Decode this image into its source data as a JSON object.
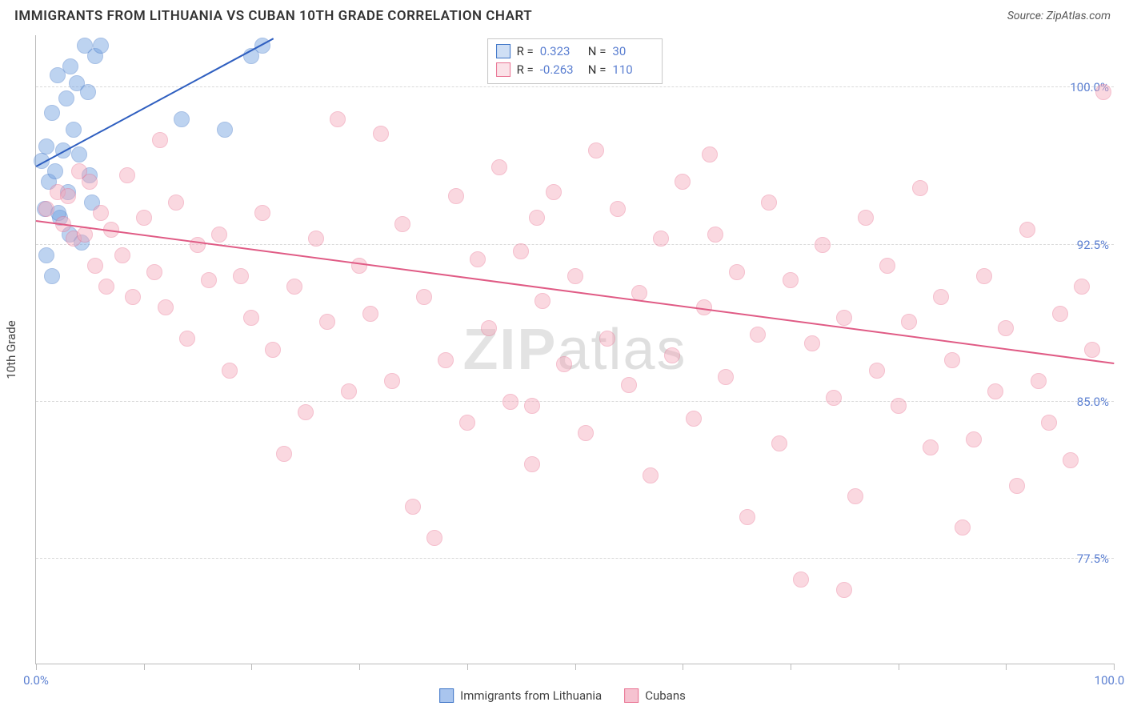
{
  "title": "IMMIGRANTS FROM LITHUANIA VS CUBAN 10TH GRADE CORRELATION CHART",
  "source": "Source: ZipAtlas.com",
  "watermark_bold": "ZIP",
  "watermark_light": "atlas",
  "ylabel": "10th Grade",
  "chart": {
    "type": "scatter",
    "background_color": "#ffffff",
    "grid_color": "#d9d9d9",
    "axis_color": "#bbbbbb",
    "tick_label_color": "#5b7fd1",
    "xlim": [
      0,
      100
    ],
    "ylim": [
      72.5,
      102.5
    ],
    "xticks": [
      0,
      10,
      20,
      30,
      40,
      50,
      60,
      70,
      80,
      90,
      100
    ],
    "xtick_labels": {
      "0": "0.0%",
      "100": "100.0%"
    },
    "yticks": [
      77.5,
      85.0,
      92.5,
      100.0
    ],
    "ytick_labels": [
      "77.5%",
      "85.0%",
      "92.5%",
      "100.0%"
    ],
    "marker_radius": 10,
    "marker_opacity": 0.45,
    "series": [
      {
        "name": "Immigrants from Lithuania",
        "short": "lithuania",
        "color": "#6f9fe0",
        "stroke": "#3d74c7",
        "r_label": "R =",
        "r_value": "0.323",
        "n_label": "N =",
        "n_value": "30",
        "trend": {
          "x1": 0,
          "y1": 96.2,
          "x2": 22,
          "y2": 102.3,
          "color": "#2f5fc0",
          "width": 2
        },
        "points": [
          [
            0.5,
            96.5
          ],
          [
            1.0,
            97.2
          ],
          [
            1.2,
            95.5
          ],
          [
            1.5,
            98.8
          ],
          [
            1.8,
            96.0
          ],
          [
            2.0,
            100.6
          ],
          [
            2.2,
            93.8
          ],
          [
            2.5,
            97.0
          ],
          [
            2.8,
            99.5
          ],
          [
            3.0,
            95.0
          ],
          [
            3.2,
            101.0
          ],
          [
            3.5,
            98.0
          ],
          [
            3.8,
            100.2
          ],
          [
            4.0,
            96.8
          ],
          [
            4.5,
            102.0
          ],
          [
            4.8,
            99.8
          ],
          [
            5.0,
            95.8
          ],
          [
            5.5,
            101.5
          ],
          [
            6.0,
            102.0
          ],
          [
            1.0,
            92.0
          ],
          [
            1.5,
            91.0
          ],
          [
            0.8,
            94.2
          ],
          [
            2.1,
            94.0
          ],
          [
            3.1,
            93.0
          ],
          [
            4.2,
            92.6
          ],
          [
            5.2,
            94.5
          ],
          [
            13.5,
            98.5
          ],
          [
            17.5,
            98.0
          ],
          [
            20.0,
            101.5
          ],
          [
            21.0,
            102.0
          ]
        ]
      },
      {
        "name": "Cubans",
        "short": "cubans",
        "color": "#f4a9bb",
        "stroke": "#e97292",
        "r_label": "R =",
        "r_value": "-0.263",
        "n_label": "N =",
        "n_value": "110",
        "trend": {
          "x1": 0,
          "y1": 93.6,
          "x2": 100,
          "y2": 86.8,
          "color": "#e05b85",
          "width": 2
        },
        "points": [
          [
            1,
            94.2
          ],
          [
            2,
            95.0
          ],
          [
            2.5,
            93.5
          ],
          [
            3,
            94.8
          ],
          [
            3.5,
            92.8
          ],
          [
            4,
            96.0
          ],
          [
            4.5,
            93.0
          ],
          [
            5,
            95.5
          ],
          [
            5.5,
            91.5
          ],
          [
            6,
            94.0
          ],
          [
            6.5,
            90.5
          ],
          [
            7,
            93.2
          ],
          [
            8,
            92.0
          ],
          [
            8.5,
            95.8
          ],
          [
            9,
            90.0
          ],
          [
            10,
            93.8
          ],
          [
            11,
            91.2
          ],
          [
            11.5,
            97.5
          ],
          [
            12,
            89.5
          ],
          [
            13,
            94.5
          ],
          [
            14,
            88.0
          ],
          [
            15,
            92.5
          ],
          [
            16,
            90.8
          ],
          [
            17,
            93.0
          ],
          [
            18,
            86.5
          ],
          [
            19,
            91.0
          ],
          [
            20,
            89.0
          ],
          [
            21,
            94.0
          ],
          [
            22,
            87.5
          ],
          [
            23,
            82.5
          ],
          [
            24,
            90.5
          ],
          [
            25,
            84.5
          ],
          [
            26,
            92.8
          ],
          [
            27,
            88.8
          ],
          [
            28,
            98.5
          ],
          [
            29,
            85.5
          ],
          [
            30,
            91.5
          ],
          [
            31,
            89.2
          ],
          [
            32,
            97.8
          ],
          [
            33,
            86.0
          ],
          [
            34,
            93.5
          ],
          [
            35,
            80.0
          ],
          [
            36,
            90.0
          ],
          [
            37,
            78.5
          ],
          [
            38,
            87.0
          ],
          [
            39,
            94.8
          ],
          [
            40,
            84.0
          ],
          [
            41,
            91.8
          ],
          [
            42,
            88.5
          ],
          [
            43,
            96.2
          ],
          [
            44,
            85.0
          ],
          [
            45,
            92.2
          ],
          [
            46,
            82.0
          ],
          [
            46.5,
            93.8
          ],
          [
            47,
            89.8
          ],
          [
            48,
            95.0
          ],
          [
            49,
            86.8
          ],
          [
            50,
            91.0
          ],
          [
            51,
            83.5
          ],
          [
            52,
            97.0
          ],
          [
            53,
            88.0
          ],
          [
            54,
            94.2
          ],
          [
            55,
            85.8
          ],
          [
            56,
            90.2
          ],
          [
            57,
            81.5
          ],
          [
            58,
            92.8
          ],
          [
            59,
            87.2
          ],
          [
            60,
            95.5
          ],
          [
            61,
            84.2
          ],
          [
            62,
            89.5
          ],
          [
            62.5,
            96.8
          ],
          [
            63,
            93.0
          ],
          [
            64,
            86.2
          ],
          [
            65,
            91.2
          ],
          [
            66,
            79.5
          ],
          [
            67,
            88.2
          ],
          [
            68,
            94.5
          ],
          [
            69,
            83.0
          ],
          [
            70,
            90.8
          ],
          [
            71,
            76.5
          ],
          [
            72,
            87.8
          ],
          [
            73,
            92.5
          ],
          [
            74,
            85.2
          ],
          [
            75,
            89.0
          ],
          [
            76,
            80.5
          ],
          [
            77,
            93.8
          ],
          [
            78,
            86.5
          ],
          [
            79,
            91.5
          ],
          [
            80,
            84.8
          ],
          [
            81,
            88.8
          ],
          [
            82,
            95.2
          ],
          [
            83,
            82.8
          ],
          [
            84,
            90.0
          ],
          [
            85,
            87.0
          ],
          [
            86,
            79.0
          ],
          [
            87,
            83.2
          ],
          [
            88,
            91.0
          ],
          [
            89,
            85.5
          ],
          [
            90,
            88.5
          ],
          [
            91,
            81.0
          ],
          [
            92,
            93.2
          ],
          [
            93,
            86.0
          ],
          [
            94,
            84.0
          ],
          [
            95,
            89.2
          ],
          [
            96,
            82.2
          ],
          [
            97,
            90.5
          ],
          [
            98,
            87.5
          ],
          [
            99,
            99.8
          ],
          [
            75,
            76.0
          ],
          [
            46,
            84.8
          ]
        ]
      }
    ]
  },
  "legend": {
    "items": [
      {
        "label": "Immigrants from Lithuania",
        "fill": "#a9c5ee",
        "stroke": "#3d74c7"
      },
      {
        "label": "Cubans",
        "fill": "#f6c2d0",
        "stroke": "#e97292"
      }
    ]
  }
}
